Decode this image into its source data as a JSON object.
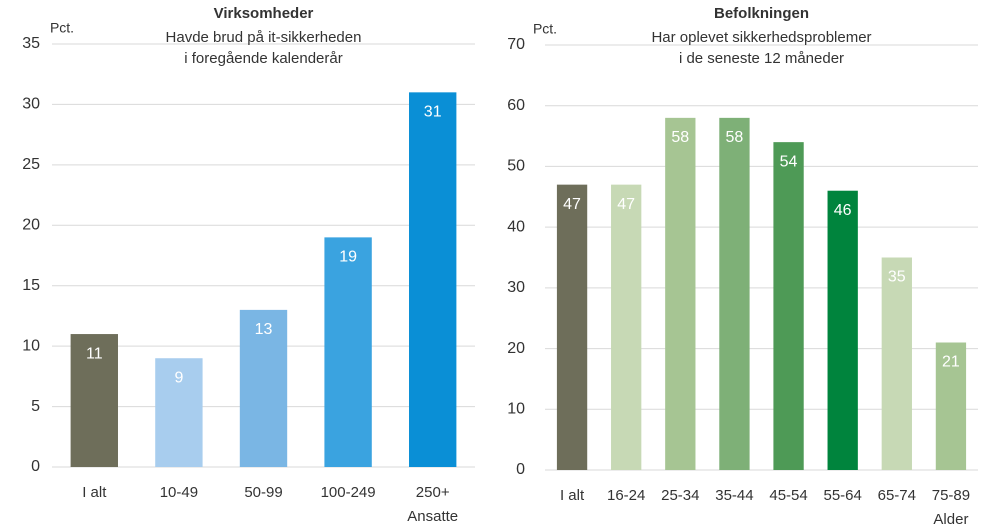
{
  "chart_data": [
    {
      "type": "bar",
      "title": "Virksomheder",
      "subtitle": [
        "Havde brud på  it-sikkerheden",
        "i foregående kalenderår"
      ],
      "ylabel": "Pct.",
      "xlabel": "Ansatte",
      "categories": [
        "I alt",
        "10-49",
        "50-99",
        "100-249",
        "250+"
      ],
      "values": [
        11,
        9,
        13,
        19,
        31
      ],
      "colors": [
        "#6e6e5a",
        "#a8cdee",
        "#7ab6e4",
        "#3aa3e0",
        "#0a8fd6"
      ],
      "ylim": [
        0,
        35
      ],
      "yticks": [
        0,
        5,
        10,
        15,
        20,
        25,
        30,
        35
      ],
      "grid": true
    },
    {
      "type": "bar",
      "title": "Befolkningen",
      "subtitle": [
        "Har oplevet sikkerhedsproblemer",
        "i de seneste 12 måneder"
      ],
      "ylabel": "Pct.",
      "xlabel": "Alder",
      "categories": [
        "I alt",
        "16-24",
        "25-34",
        "35-44",
        "45-54",
        "55-64",
        "65-74",
        "75-89"
      ],
      "values": [
        47,
        47,
        58,
        58,
        54,
        46,
        35,
        21
      ],
      "colors": [
        "#6e6e5a",
        "#c7d9b5",
        "#a6c593",
        "#7eb077",
        "#4e9a56",
        "#00843d",
        "#c7d9b5",
        "#a6c593"
      ],
      "ylim": [
        0,
        70
      ],
      "yticks": [
        0,
        10,
        20,
        30,
        40,
        50,
        60,
        70
      ],
      "grid": true
    }
  ]
}
